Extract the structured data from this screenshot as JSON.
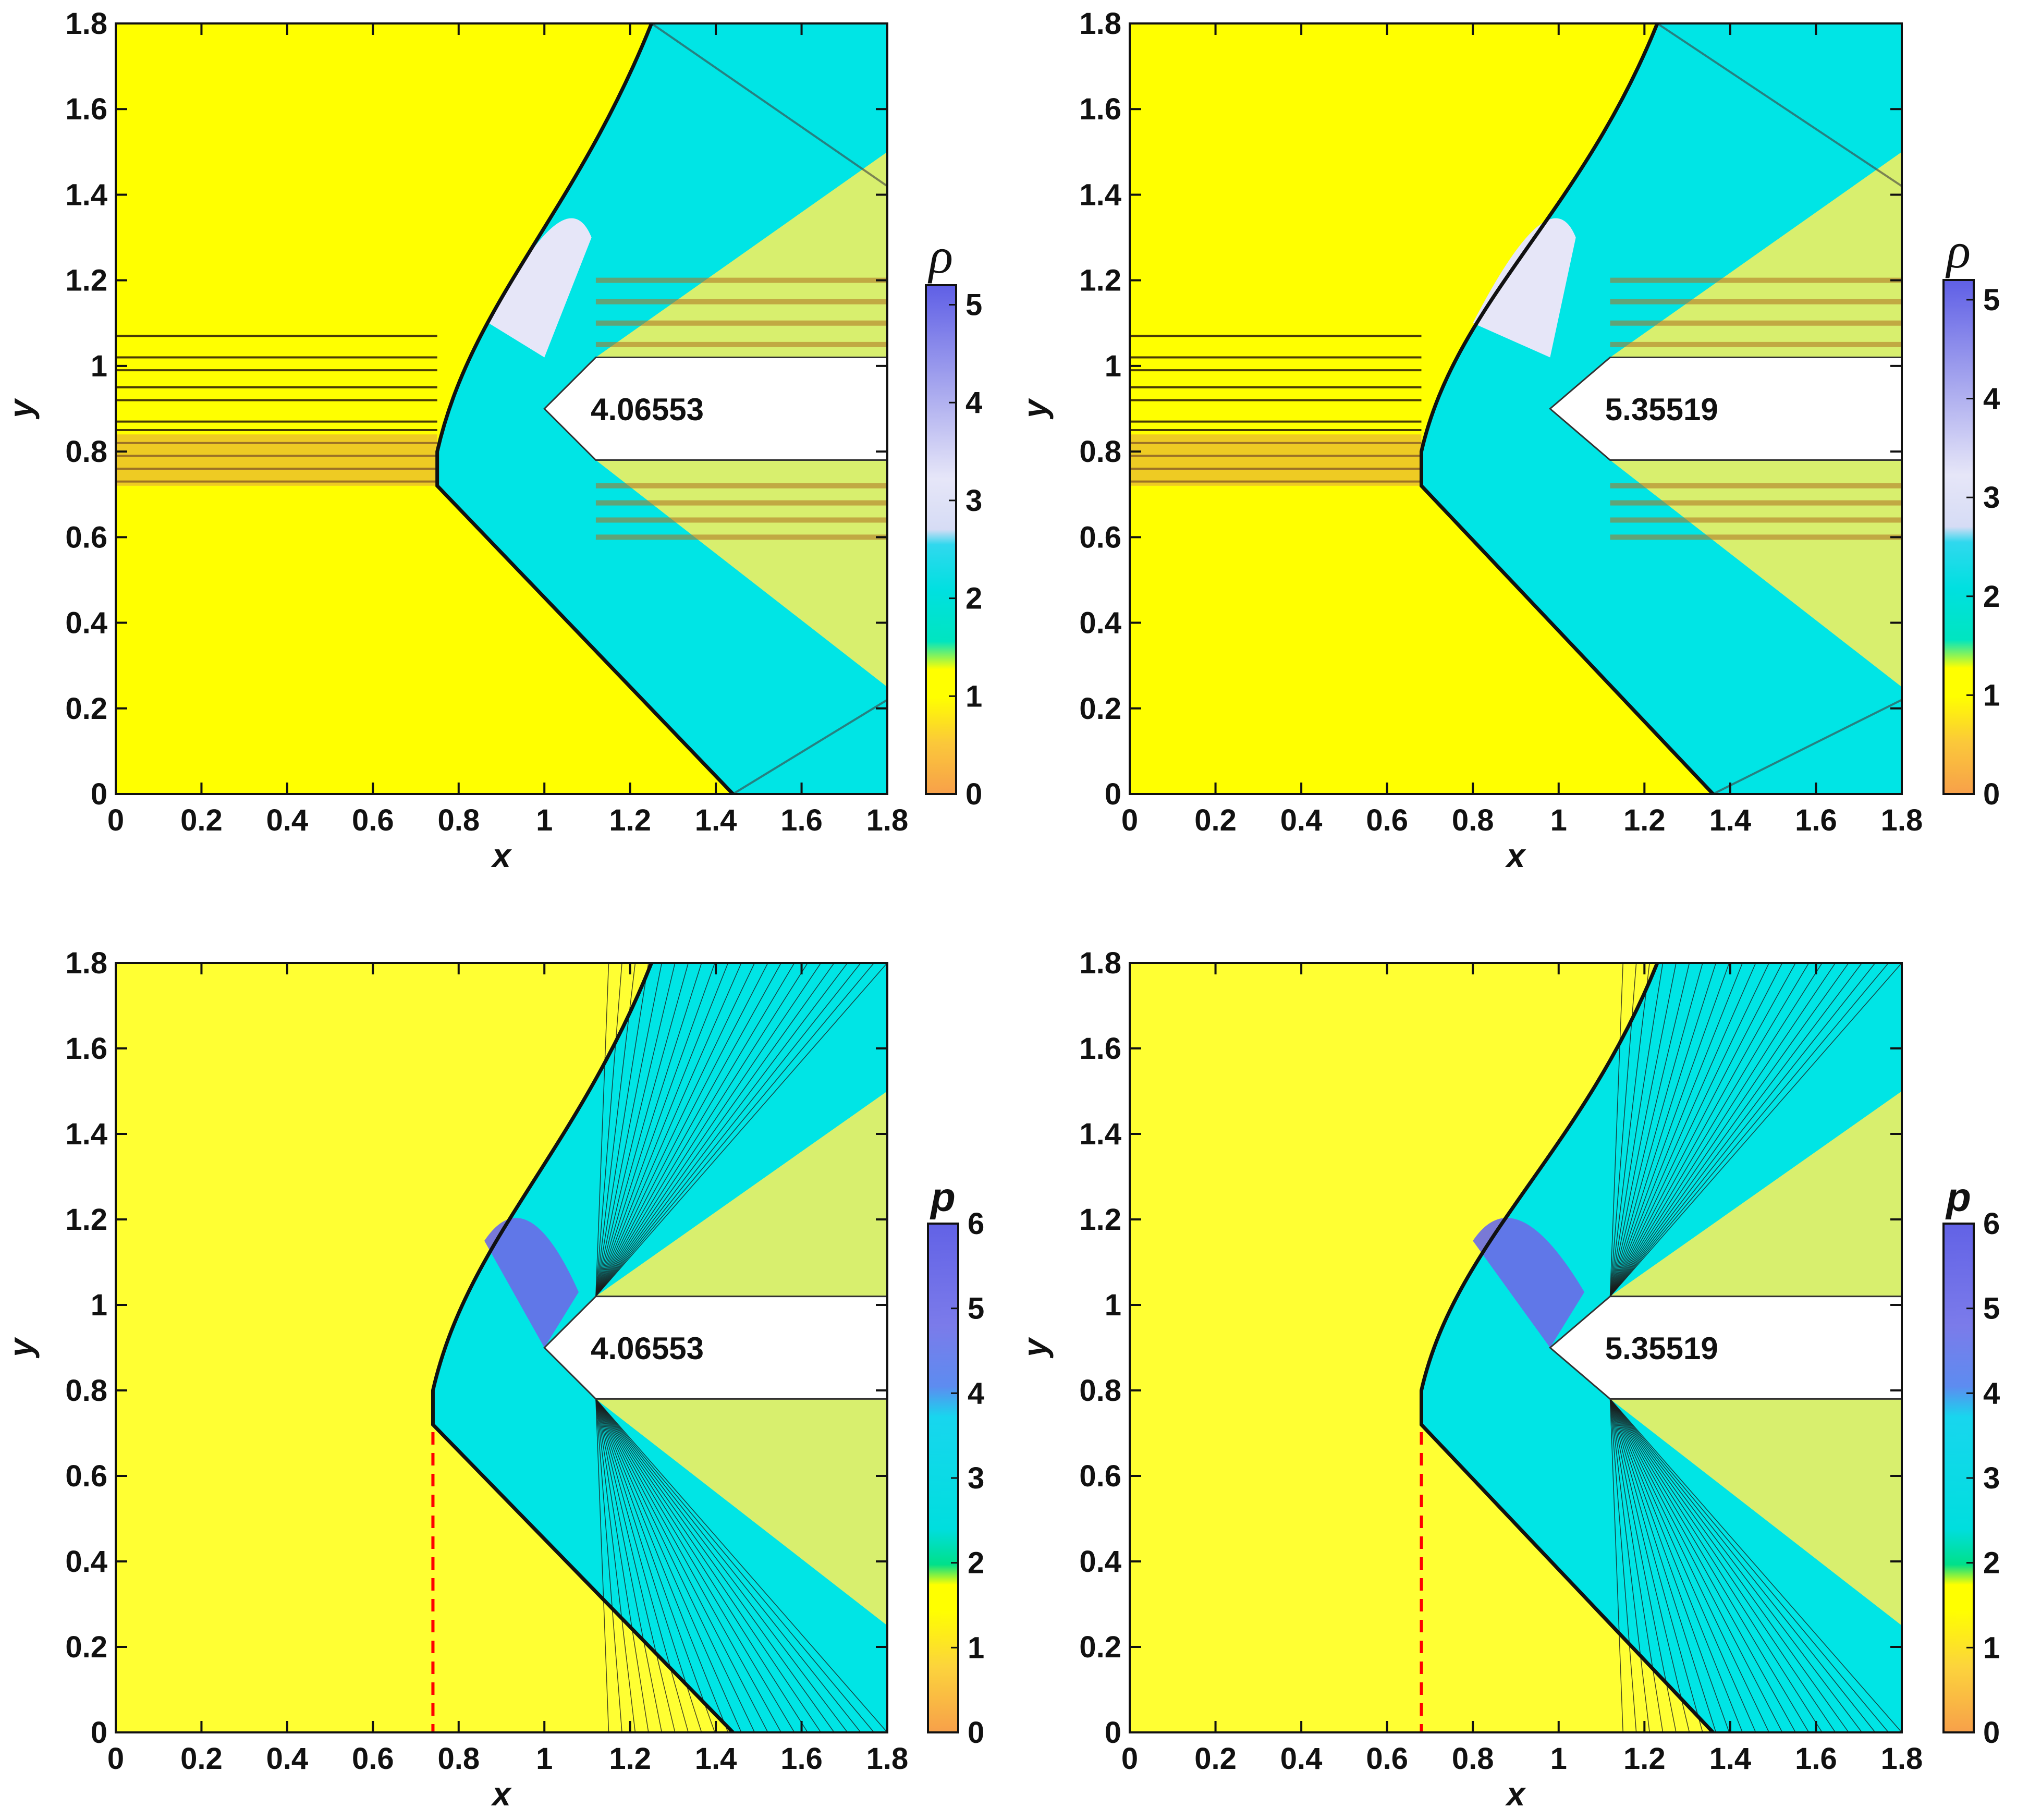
{
  "chart_data": [
    {
      "type": "heatmap",
      "field": "density",
      "xlabel": "x",
      "ylabel": "y",
      "xlim": [
        0,
        1.8
      ],
      "ylim": [
        0,
        1.8
      ],
      "xticks": [
        "0",
        "0.2",
        "0.4",
        "0.6",
        "0.8",
        "1",
        "1.2",
        "1.4",
        "1.6",
        "1.8"
      ],
      "yticks": [
        "0",
        "0.2",
        "0.4",
        "0.6",
        "0.8",
        "1",
        "1.2",
        "1.4",
        "1.6",
        "1.8"
      ],
      "annotation": "4.06553",
      "colorbar": {
        "title": "ρ",
        "range": [
          0,
          5.2
        ],
        "ticks": [
          "0",
          "1",
          "2",
          "3",
          "4",
          "5"
        ]
      },
      "features": {
        "shock_apex": [
          0.75,
          0.8
        ],
        "upper_shock_top": [
          1.25,
          1.8
        ],
        "lower_shock_bottom": [
          1.44,
          0
        ],
        "body_tip": [
          1.0,
          0.9
        ],
        "body_upper_y": 1.02,
        "body_lower_y": 0.78,
        "body_corner_x": 1.12,
        "dashed_line": false
      }
    },
    {
      "type": "heatmap",
      "field": "density",
      "xlabel": "x",
      "ylabel": "y",
      "xlim": [
        0,
        1.8
      ],
      "ylim": [
        0,
        1.8
      ],
      "xticks": [
        "0",
        "0.2",
        "0.4",
        "0.6",
        "0.8",
        "1",
        "1.2",
        "1.4",
        "1.6",
        "1.8"
      ],
      "yticks": [
        "0",
        "0.2",
        "0.4",
        "0.6",
        "0.8",
        "1",
        "1.2",
        "1.4",
        "1.6",
        "1.8"
      ],
      "annotation": "5.35519",
      "colorbar": {
        "title": "ρ",
        "range": [
          0,
          5.2
        ],
        "ticks": [
          "0",
          "1",
          "2",
          "3",
          "4",
          "5"
        ]
      },
      "features": {
        "shock_apex": [
          0.68,
          0.8
        ],
        "upper_shock_top": [
          1.23,
          1.8
        ],
        "lower_shock_bottom": [
          1.36,
          0
        ],
        "body_tip": [
          0.98,
          0.9
        ],
        "body_upper_y": 1.02,
        "body_lower_y": 0.78,
        "body_corner_x": 1.12,
        "dashed_line": false
      }
    },
    {
      "type": "heatmap",
      "field": "pressure",
      "xlabel": "x",
      "ylabel": "y",
      "xlim": [
        0,
        1.8
      ],
      "ylim": [
        0,
        1.8
      ],
      "xticks": [
        "0",
        "0.2",
        "0.4",
        "0.6",
        "0.8",
        "1",
        "1.2",
        "1.4",
        "1.6",
        "1.8"
      ],
      "yticks": [
        "0",
        "0.2",
        "0.4",
        "0.6",
        "0.8",
        "1",
        "1.2",
        "1.4",
        "1.6",
        "1.8"
      ],
      "annotation": "4.06553",
      "colorbar": {
        "title": "p",
        "range": [
          0,
          6
        ],
        "ticks": [
          "0",
          "1",
          "2",
          "3",
          "4",
          "5",
          "6"
        ]
      },
      "features": {
        "shock_apex": [
          0.74,
          0.8
        ],
        "upper_shock_top": [
          1.25,
          1.8
        ],
        "lower_shock_bottom": [
          1.44,
          0
        ],
        "body_tip": [
          1.0,
          0.9
        ],
        "body_upper_y": 1.02,
        "body_lower_y": 0.78,
        "body_corner_x": 1.12,
        "dashed_line": true,
        "dashed_x": 0.74
      }
    },
    {
      "type": "heatmap",
      "field": "pressure",
      "xlabel": "x",
      "ylabel": "y",
      "xlim": [
        0,
        1.8
      ],
      "ylim": [
        0,
        1.8
      ],
      "xticks": [
        "0",
        "0.2",
        "0.4",
        "0.6",
        "0.8",
        "1",
        "1.2",
        "1.4",
        "1.6",
        "1.8"
      ],
      "yticks": [
        "0",
        "0.2",
        "0.4",
        "0.6",
        "0.8",
        "1",
        "1.2",
        "1.4",
        "1.6",
        "1.8"
      ],
      "annotation": "5.35519",
      "colorbar": {
        "title": "p",
        "range": [
          0,
          6
        ],
        "ticks": [
          "0",
          "1",
          "2",
          "3",
          "4",
          "5",
          "6"
        ]
      },
      "features": {
        "shock_apex": [
          0.68,
          0.8
        ],
        "upper_shock_top": [
          1.23,
          1.8
        ],
        "lower_shock_bottom": [
          1.36,
          0
        ],
        "body_tip": [
          0.98,
          0.9
        ],
        "body_upper_y": 1.02,
        "body_lower_y": 0.78,
        "body_corner_x": 1.12,
        "dashed_line": true,
        "dashed_x": 0.68
      }
    }
  ],
  "colors": {
    "freestream": "#ffff00",
    "freestream_pressure": "#ffff33",
    "post_shock": "#00e5e5",
    "high": "#6a6ae8",
    "mid_high": "#e2e2f5",
    "low": "#f7a04a",
    "body_fill": "#ffffff",
    "dashed": "#ff0000"
  }
}
